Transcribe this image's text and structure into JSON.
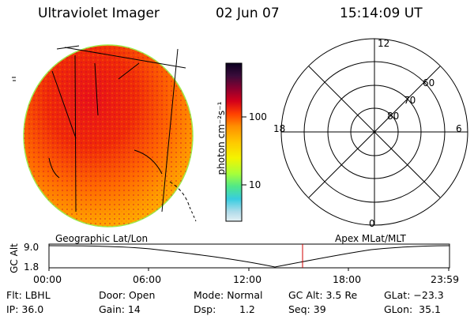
{
  "header": {
    "instrument": "Ultraviolet Imager",
    "date": "02 Jun 07",
    "time": "15:14:09 UT"
  },
  "colorbar": {
    "label": "photon cm⁻²s⁻¹",
    "ticks": [
      "100",
      "10"
    ],
    "colors": [
      "#0b0020",
      "#2a0a3a",
      "#500040",
      "#7a0030",
      "#a8002a",
      "#d4001a",
      "#f01010",
      "#ff3a00",
      "#ff6a00",
      "#ff8f00",
      "#ffb000",
      "#ffd400",
      "#f8f400",
      "#d6ff1a",
      "#a6ff3a",
      "#6ef070",
      "#2ed8a8",
      "#40c8d8",
      "#a0d8e8",
      "#d8ecf2"
    ]
  },
  "polar": {
    "lat_labels": [
      "80",
      "70",
      "60"
    ],
    "mlt_labels": {
      "top": "12",
      "left": "18",
      "right": "6",
      "bottom": "0"
    }
  },
  "timeline": {
    "left_label": "Geographic Lat/Lon",
    "right_label": "Apex MLat/MLT",
    "axis_title": "GC Alt",
    "y_ticks": [
      "9.0",
      "1.8"
    ],
    "x_ticks": [
      "00:00",
      "06:00",
      "12:00",
      "18:00",
      "23:59"
    ],
    "current_marker_color": "#d00000"
  },
  "status": {
    "flt": "Flt: LBHL",
    "ip": "IP: 36.0",
    "door": "Door: Open",
    "gain": "Gain: 14",
    "mode": "Mode: Normal",
    "dsp_label": "Dsp:",
    "dsp_value": "1.2",
    "gcalt": "GC Alt: 3.5 Re",
    "seq": "Seq: 39",
    "glat": "GLat: −23.3",
    "glon": "GLon:  35.1"
  }
}
